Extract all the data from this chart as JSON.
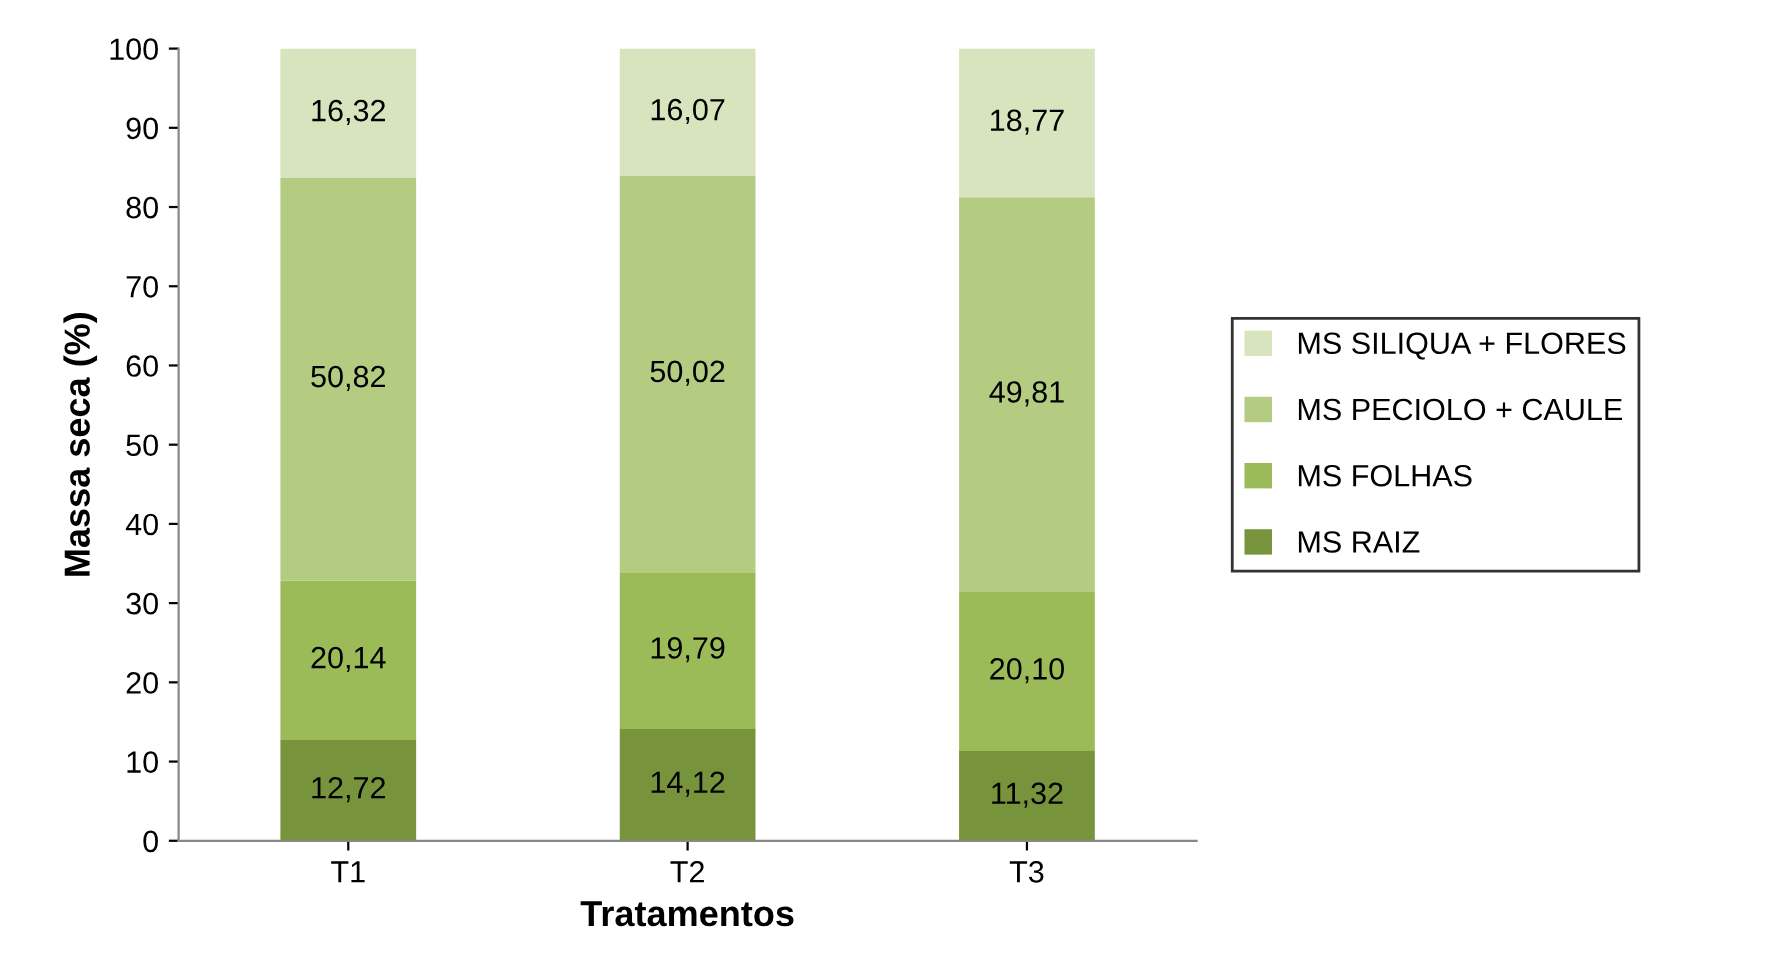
{
  "chart_data": {
    "type": "bar",
    "stacked": true,
    "xlabel": "Tratamentos",
    "ylabel": "Massa seca (%)",
    "categories": [
      "T1",
      "T2",
      "T3"
    ],
    "series": [
      {
        "name": "MS RAIZ",
        "color": "#77933c",
        "values": [
          12.72,
          14.12,
          11.32
        ],
        "value_labels": [
          "12,72",
          "14,12",
          "11,32"
        ]
      },
      {
        "name": "MS FOLHAS",
        "color": "#9bbb59",
        "values": [
          20.14,
          19.79,
          20.1
        ],
        "value_labels": [
          "20,14",
          "19,79",
          "20,10"
        ]
      },
      {
        "name": "MS PECIOLO + CAULE",
        "color": "#b3cc82",
        "values": [
          50.82,
          50.02,
          49.81
        ],
        "value_labels": [
          "50,82",
          "50,02",
          "49,81"
        ]
      },
      {
        "name": "MS SILIQUA + FLORES",
        "color": "#d7e4bd",
        "values": [
          16.32,
          16.07,
          18.77
        ],
        "value_labels": [
          "16,32",
          "16,07",
          "18,77"
        ]
      }
    ],
    "ylim": [
      0,
      100
    ],
    "yticks": [
      0,
      10,
      20,
      30,
      40,
      50,
      60,
      70,
      80,
      90,
      100
    ],
    "grid": false,
    "legend": "right"
  }
}
